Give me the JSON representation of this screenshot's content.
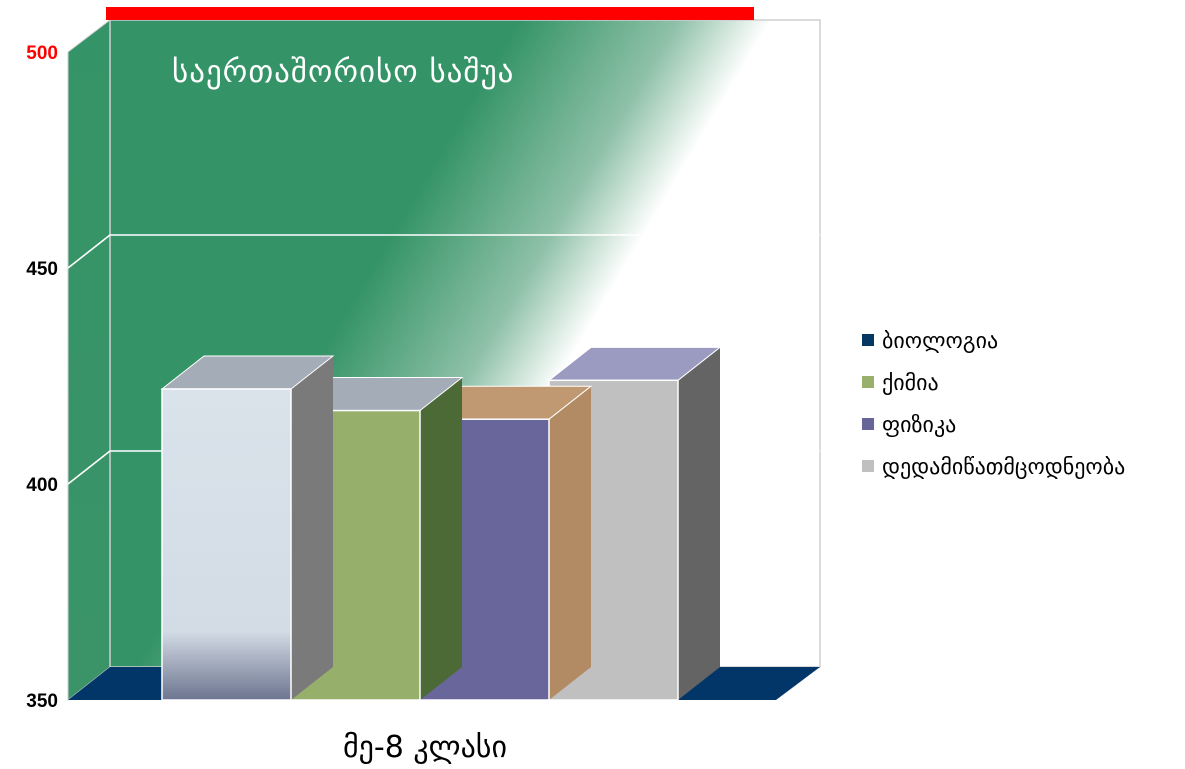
{
  "chart_data": {
    "type": "bar",
    "title": "საერთაშორისო საშუა",
    "categories": [
      "მე-8 კლასი"
    ],
    "series": [
      {
        "name": "ბიოლოგია",
        "values": [
          422
        ]
      },
      {
        "name": "ქიმია",
        "values": [
          417
        ]
      },
      {
        "name": "ფიზიკა",
        "values": [
          415
        ]
      },
      {
        "name": "დედამიწათმცოდნეობა",
        "values": [
          424
        ]
      }
    ],
    "ylim": [
      350,
      500
    ],
    "yticks": [
      "350",
      "400",
      "450",
      "500"
    ],
    "grid": true,
    "legend_position": "right",
    "colors": {
      "series_front": [
        "#dae2ea",
        "#96b06c",
        "#68669a",
        "#c0c0c0"
      ],
      "series_top": [
        "#a3acb7",
        "#a3acb7",
        "#c09872",
        "#9b9bc2"
      ],
      "series_side": [
        "#7a7a7a",
        "#4c6a36",
        "#b28a63",
        "#646464"
      ],
      "legend_markers": [
        "#073864",
        "#98b06c",
        "#65659a",
        "#c0c0c0"
      ],
      "wall": "#359467",
      "floor": "#023669",
      "top_bar": "#ff0000",
      "highlight_tick": "#ff0000"
    }
  }
}
